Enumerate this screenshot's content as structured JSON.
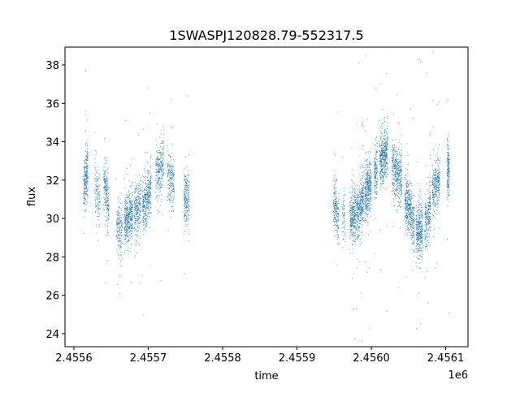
{
  "chart_data": {
    "type": "scatter",
    "title": "1SWASPJ120828.79-552317.5",
    "xlabel": "time",
    "ylabel": "flux",
    "x_offset_label": "1e6",
    "xlim": [
      2455588,
      2456130
    ],
    "ylim": [
      23.32,
      38.93
    ],
    "grid": false,
    "marker_color": "#1f77b4",
    "x_ticks": [
      {
        "value": 2455600,
        "label": "2.4556"
      },
      {
        "value": 2455700,
        "label": "2.4557"
      },
      {
        "value": 2455800,
        "label": "2.4558"
      },
      {
        "value": 2455900,
        "label": "2.4559"
      },
      {
        "value": 2456000,
        "label": "2.4560"
      },
      {
        "value": 2456100,
        "label": "2.4561"
      }
    ],
    "y_ticks": [
      {
        "value": 24,
        "label": "24"
      },
      {
        "value": 26,
        "label": "26"
      },
      {
        "value": 28,
        "label": "28"
      },
      {
        "value": 30,
        "label": "30"
      },
      {
        "value": 32,
        "label": "32"
      },
      {
        "value": 34,
        "label": "34"
      },
      {
        "value": 36,
        "label": "36"
      },
      {
        "value": 38,
        "label": "38"
      }
    ],
    "segments_note": "nightly clusters: [t_start, t_end, flux_start, flux_end, count] (t as full time value)",
    "segments": [
      [
        2455613,
        2455619,
        31.5,
        32.8,
        260
      ],
      [
        2455628,
        2455635,
        31.5,
        31.0,
        120
      ],
      [
        2455640,
        2455647,
        32.0,
        30.5,
        220
      ],
      [
        2455657,
        2455665,
        29.5,
        29.3,
        180
      ],
      [
        2455668,
        2455679,
        29.8,
        30.2,
        420
      ],
      [
        2455681,
        2455690,
        30.3,
        30.6,
        260
      ],
      [
        2455692,
        2455704,
        30.6,
        31.5,
        380
      ],
      [
        2455710,
        2455721,
        32.0,
        33.0,
        260
      ],
      [
        2455726,
        2455735,
        32.5,
        31.8,
        200
      ],
      [
        2455748,
        2455755,
        31.0,
        31.0,
        220
      ],
      [
        2455949,
        2455956,
        30.8,
        30.2,
        200
      ],
      [
        2455961,
        2455965,
        30.0,
        30.0,
        60
      ],
      [
        2455971,
        2455979,
        30.0,
        30.3,
        300
      ],
      [
        2455980,
        2455990,
        30.3,
        31.0,
        400
      ],
      [
        2455991,
        2456000,
        31.3,
        31.8,
        400
      ],
      [
        2456004,
        2456008,
        32.5,
        32.5,
        150
      ],
      [
        2456011,
        2456022,
        33.0,
        33.5,
        450
      ],
      [
        2456028,
        2456041,
        32.8,
        32.0,
        420
      ],
      [
        2456045,
        2456058,
        31.0,
        29.8,
        450
      ],
      [
        2456060,
        2456069,
        29.3,
        29.5,
        350
      ],
      [
        2456072,
        2456080,
        29.8,
        30.5,
        250
      ],
      [
        2456082,
        2456092,
        31.5,
        32.0,
        300
      ],
      [
        2456102,
        2456105,
        32.5,
        32.5,
        180
      ]
    ],
    "scatter_std": 0.7,
    "outlier_fraction": 0.04
  }
}
